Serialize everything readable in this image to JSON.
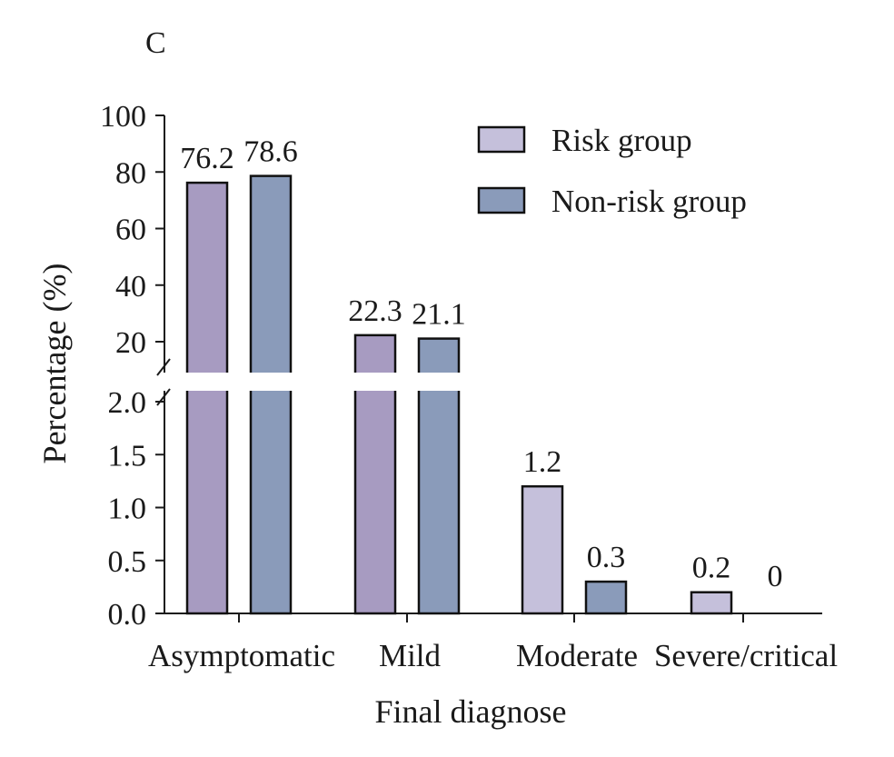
{
  "chart_data": {
    "type": "bar",
    "panel_label": "C",
    "xlabel": "Final diagnose",
    "ylabel": "Percentage (%)",
    "categories": [
      "Asymptomatic",
      "Mild",
      "Moderate",
      "Severe/critical"
    ],
    "series": [
      {
        "name": "Risk group",
        "values": [
          76.2,
          22.3,
          1.2,
          0.2
        ],
        "labels": [
          "76.2",
          "22.3",
          "1.2",
          "0.2"
        ],
        "colors": [
          "#a79bc1",
          "#a79bc1",
          "#c5c0db",
          "#c5c0db"
        ]
      },
      {
        "name": "Non-risk group",
        "values": [
          78.6,
          21.1,
          0.3,
          0
        ],
        "labels": [
          "78.6",
          "21.1",
          "0.3",
          "0"
        ],
        "colors": [
          "#8a9bba",
          "#8a9bba",
          "#8a9bba",
          "#8a9bba"
        ]
      }
    ],
    "legend_colors": [
      "#c5c0db",
      "#8a9bba"
    ],
    "y_axis": {
      "broken": true,
      "lower_segment": {
        "range": [
          0,
          2.0
        ],
        "ticks": [
          "0.0",
          "0.5",
          "1.0",
          "1.5",
          "2.0"
        ]
      },
      "upper_segment": {
        "range": [
          20,
          100
        ],
        "ticks": [
          "20",
          "40",
          "60",
          "80",
          "100"
        ]
      }
    },
    "legend_position": "top-right",
    "grid": false
  }
}
